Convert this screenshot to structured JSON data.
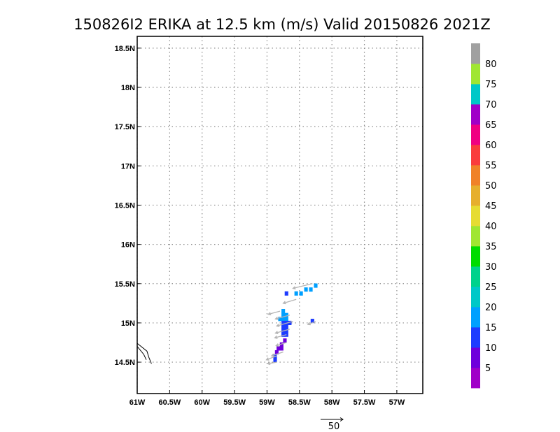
{
  "chart_data": {
    "type": "heatmap",
    "title": "150826I2 ERIKA at 12.5 km (m/s) Valid 20150826  2021Z",
    "xlabel": "",
    "ylabel": "",
    "xlim": [
      -61.0,
      -56.6
    ],
    "ylim": [
      14.1,
      18.65
    ],
    "x_ticks": [
      {
        "value": -61.0,
        "label": "61W"
      },
      {
        "value": -60.5,
        "label": "60.5W"
      },
      {
        "value": -60.0,
        "label": "60W"
      },
      {
        "value": -59.5,
        "label": "59.5W"
      },
      {
        "value": -59.0,
        "label": "59W"
      },
      {
        "value": -58.5,
        "label": "58.5W"
      },
      {
        "value": -58.0,
        "label": "58W"
      },
      {
        "value": -57.5,
        "label": "57.5W"
      },
      {
        "value": -57.0,
        "label": "57W"
      }
    ],
    "y_ticks": [
      {
        "value": 14.5,
        "label": "14.5N"
      },
      {
        "value": 15.0,
        "label": "15N"
      },
      {
        "value": 15.5,
        "label": "15.5N"
      },
      {
        "value": 16.0,
        "label": "16N"
      },
      {
        "value": 16.5,
        "label": "16.5N"
      },
      {
        "value": 17.0,
        "label": "17N"
      },
      {
        "value": 17.5,
        "label": "17.5N"
      },
      {
        "value": 18.0,
        "label": "18N"
      },
      {
        "value": 18.5,
        "label": "18.5N"
      }
    ],
    "grid": true,
    "colorbar": {
      "bins": [
        {
          "min": 0,
          "max": 5,
          "color": "#a000c8"
        },
        {
          "min": 5,
          "max": 10,
          "color": "#6e00dc"
        },
        {
          "min": 10,
          "max": 15,
          "color": "#1e3cff"
        },
        {
          "min": 15,
          "max": 20,
          "color": "#00a0ff"
        },
        {
          "min": 20,
          "max": 25,
          "color": "#00c8c8"
        },
        {
          "min": 25,
          "max": 30,
          "color": "#00d28c"
        },
        {
          "min": 30,
          "max": 35,
          "color": "#00dc00"
        },
        {
          "min": 35,
          "max": 40,
          "color": "#a0e632"
        },
        {
          "min": 40,
          "max": 45,
          "color": "#e6dc32"
        },
        {
          "min": 45,
          "max": 50,
          "color": "#e6af2d"
        },
        {
          "min": 50,
          "max": 55,
          "color": "#f08228"
        },
        {
          "min": 55,
          "max": 60,
          "color": "#fa3c3c"
        },
        {
          "min": 60,
          "max": 65,
          "color": "#f00082"
        },
        {
          "min": 65,
          "max": 70,
          "color": "#a000c8"
        },
        {
          "min": 70,
          "max": 75,
          "color": "#00c8c8"
        },
        {
          "min": 75,
          "max": 80,
          "color": "#a0e632"
        },
        {
          "min": 80,
          "max": 85,
          "color": "#a0a0a0"
        }
      ],
      "labels": [
        {
          "value": 5,
          "text": "5"
        },
        {
          "value": 10,
          "text": "10"
        },
        {
          "value": 15,
          "text": "15"
        },
        {
          "value": 20,
          "text": "20"
        },
        {
          "value": 25,
          "text": "25"
        },
        {
          "value": 30,
          "text": "30"
        },
        {
          "value": 35,
          "text": "35"
        },
        {
          "value": 40,
          "text": "40"
        },
        {
          "value": 45,
          "text": "45"
        },
        {
          "value": 50,
          "text": "50"
        },
        {
          "value": 55,
          "text": "55"
        },
        {
          "value": 60,
          "text": "60"
        },
        {
          "value": 65,
          "text": "65"
        },
        {
          "value": 70,
          "text": "70"
        },
        {
          "value": 75,
          "text": "75"
        },
        {
          "value": 80,
          "text": "80"
        }
      ]
    },
    "cells": [
      {
        "lon": -58.25,
        "lat": 15.475,
        "value": 16
      },
      {
        "lon": -58.325,
        "lat": 15.425,
        "value": 16
      },
      {
        "lon": -58.4,
        "lat": 15.425,
        "value": 16
      },
      {
        "lon": -58.475,
        "lat": 15.375,
        "value": 16
      },
      {
        "lon": -58.55,
        "lat": 15.375,
        "value": 16
      },
      {
        "lon": -58.7,
        "lat": 15.375,
        "value": 13
      },
      {
        "lon": -58.75,
        "lat": 15.15,
        "value": 16
      },
      {
        "lon": -58.75,
        "lat": 15.1,
        "value": 16
      },
      {
        "lon": -58.7,
        "lat": 15.1,
        "value": 16
      },
      {
        "lon": -58.8,
        "lat": 15.05,
        "value": 16
      },
      {
        "lon": -58.75,
        "lat": 15.05,
        "value": 16
      },
      {
        "lon": -58.7,
        "lat": 15.05,
        "value": 16
      },
      {
        "lon": -58.75,
        "lat": 15.0,
        "value": 12
      },
      {
        "lon": -58.7,
        "lat": 15.0,
        "value": 12
      },
      {
        "lon": -58.65,
        "lat": 15.0,
        "value": 13
      },
      {
        "lon": -58.3,
        "lat": 15.025,
        "value": 12
      },
      {
        "lon": -58.75,
        "lat": 14.95,
        "value": 12
      },
      {
        "lon": -58.7,
        "lat": 14.95,
        "value": 12
      },
      {
        "lon": -58.75,
        "lat": 14.9,
        "value": 12
      },
      {
        "lon": -58.7,
        "lat": 14.9,
        "value": 12
      },
      {
        "lon": -58.75,
        "lat": 14.85,
        "value": 12
      },
      {
        "lon": -58.7,
        "lat": 14.85,
        "value": 12
      },
      {
        "lon": -58.725,
        "lat": 14.775,
        "value": 8
      },
      {
        "lon": -58.775,
        "lat": 14.725,
        "value": 8
      },
      {
        "lon": -58.775,
        "lat": 14.675,
        "value": 6
      },
      {
        "lon": -58.825,
        "lat": 14.675,
        "value": 6
      },
      {
        "lon": -58.85,
        "lat": 14.625,
        "value": 6
      },
      {
        "lon": -58.875,
        "lat": 14.575,
        "value": 11
      },
      {
        "lon": -58.875,
        "lat": 14.525,
        "value": 11
      }
    ],
    "vectors": [
      {
        "lon": -58.3,
        "lat": 15.5,
        "dx": -0.3,
        "dy": -0.06
      },
      {
        "lon": -58.55,
        "lat": 15.3,
        "dx": -0.2,
        "dy": -0.05
      },
      {
        "lon": -58.8,
        "lat": 15.15,
        "dx": -0.18,
        "dy": -0.04
      },
      {
        "lon": -58.65,
        "lat": 15.1,
        "dx": -0.22,
        "dy": -0.05
      },
      {
        "lon": -58.6,
        "lat": 15.02,
        "dx": -0.25,
        "dy": -0.06
      },
      {
        "lon": -58.25,
        "lat": 15.02,
        "dx": -0.12,
        "dy": -0.04
      },
      {
        "lon": -58.65,
        "lat": 14.92,
        "dx": -0.22,
        "dy": -0.05
      },
      {
        "lon": -58.7,
        "lat": 14.85,
        "dx": -0.18,
        "dy": -0.04
      },
      {
        "lon": -58.7,
        "lat": 14.75,
        "dx": -0.16,
        "dy": -0.04
      },
      {
        "lon": -58.75,
        "lat": 14.63,
        "dx": -0.18,
        "dy": -0.05
      },
      {
        "lon": -58.85,
        "lat": 14.58,
        "dx": -0.16,
        "dy": -0.05
      },
      {
        "lon": -58.85,
        "lat": 14.5,
        "dx": -0.14,
        "dy": -0.02
      }
    ],
    "coastline": [
      [
        [
          -61.0,
          14.74
        ],
        [
          -60.85,
          14.64
        ],
        [
          -60.82,
          14.56
        ],
        [
          -60.78,
          14.48
        ]
      ],
      [
        [
          -61.0,
          14.7
        ],
        [
          -60.9,
          14.6
        ],
        [
          -60.86,
          14.53
        ]
      ]
    ],
    "reference_vector": {
      "label": "50"
    }
  }
}
